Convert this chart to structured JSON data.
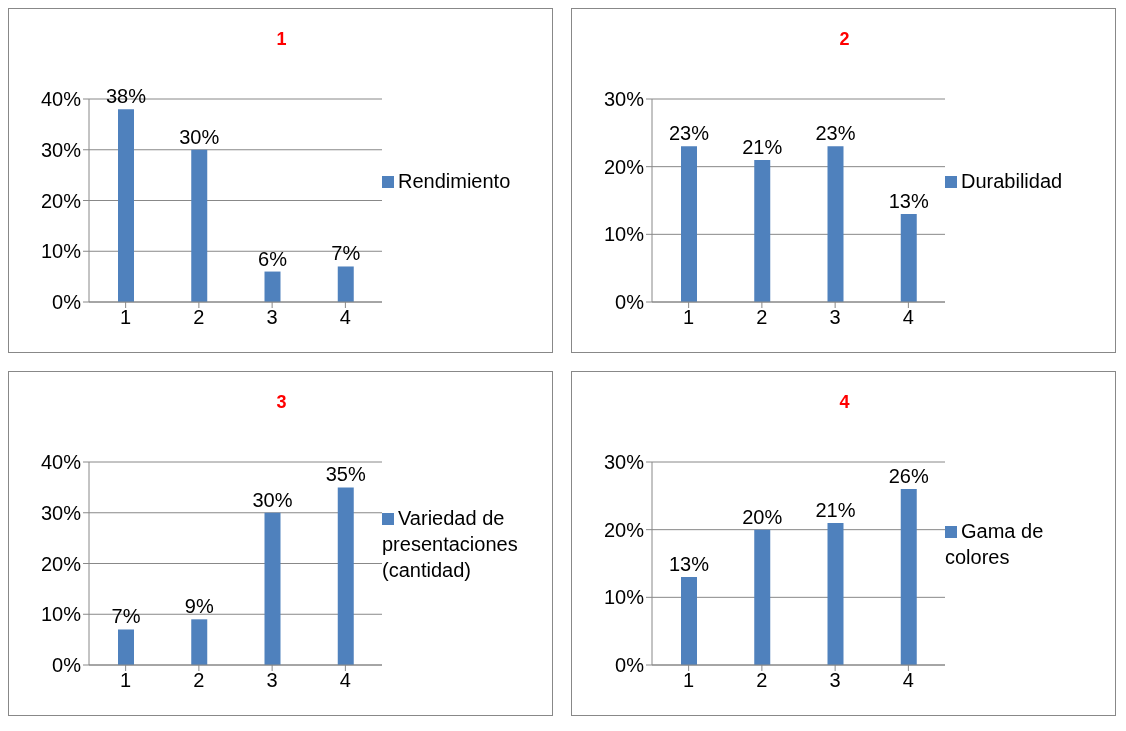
{
  "chart_data": [
    {
      "type": "bar",
      "title": "1",
      "categories": [
        "1",
        "2",
        "3",
        "4"
      ],
      "series": [
        {
          "name": "Rendimiento",
          "color": "#4f81bd",
          "values": [
            38,
            30,
            6,
            7
          ],
          "value_labels": [
            "38%",
            "30%",
            "6%",
            "7%"
          ]
        }
      ],
      "ylim": [
        0,
        40
      ],
      "yticks": [
        {
          "value": 0,
          "label": "0%"
        },
        {
          "value": 10,
          "label": "10%"
        },
        {
          "value": 20,
          "label": "20%"
        },
        {
          "value": 30,
          "label": "30%"
        },
        {
          "value": 40,
          "label": "40%"
        }
      ],
      "grid": "y",
      "legend": "right"
    },
    {
      "type": "bar",
      "title": "2",
      "categories": [
        "1",
        "2",
        "3",
        "4"
      ],
      "series": [
        {
          "name": "Durabilidad",
          "color": "#4f81bd",
          "values": [
            23,
            21,
            23,
            13
          ],
          "value_labels": [
            "23%",
            "21%",
            "23%",
            "13%"
          ]
        }
      ],
      "ylim": [
        0,
        30
      ],
      "yticks": [
        {
          "value": 0,
          "label": "0%"
        },
        {
          "value": 10,
          "label": "10%"
        },
        {
          "value": 20,
          "label": "20%"
        },
        {
          "value": 30,
          "label": "30%"
        }
      ],
      "grid": "y",
      "legend": "right"
    },
    {
      "type": "bar",
      "title": "3",
      "categories": [
        "1",
        "2",
        "3",
        "4"
      ],
      "series": [
        {
          "name": "Variedad de presentaciones (cantidad)",
          "color": "#4f81bd",
          "values": [
            7,
            9,
            30,
            35
          ],
          "value_labels": [
            "7%",
            "9%",
            "30%",
            "35%"
          ]
        }
      ],
      "ylim": [
        0,
        40
      ],
      "yticks": [
        {
          "value": 0,
          "label": "0%"
        },
        {
          "value": 10,
          "label": "10%"
        },
        {
          "value": 20,
          "label": "20%"
        },
        {
          "value": 30,
          "label": "30%"
        },
        {
          "value": 40,
          "label": "40%"
        }
      ],
      "grid": "y",
      "legend": "right"
    },
    {
      "type": "bar",
      "title": "4",
      "categories": [
        "1",
        "2",
        "3",
        "4"
      ],
      "series": [
        {
          "name": "Gama de colores",
          "color": "#4f81bd",
          "values": [
            13,
            20,
            21,
            26
          ],
          "value_labels": [
            "13%",
            "20%",
            "21%",
            "26%"
          ]
        }
      ],
      "ylim": [
        0,
        30
      ],
      "yticks": [
        {
          "value": 0,
          "label": "0%"
        },
        {
          "value": 10,
          "label": "10%"
        },
        {
          "value": 20,
          "label": "20%"
        },
        {
          "value": 30,
          "label": "30%"
        }
      ],
      "grid": "y",
      "legend": "right"
    }
  ]
}
